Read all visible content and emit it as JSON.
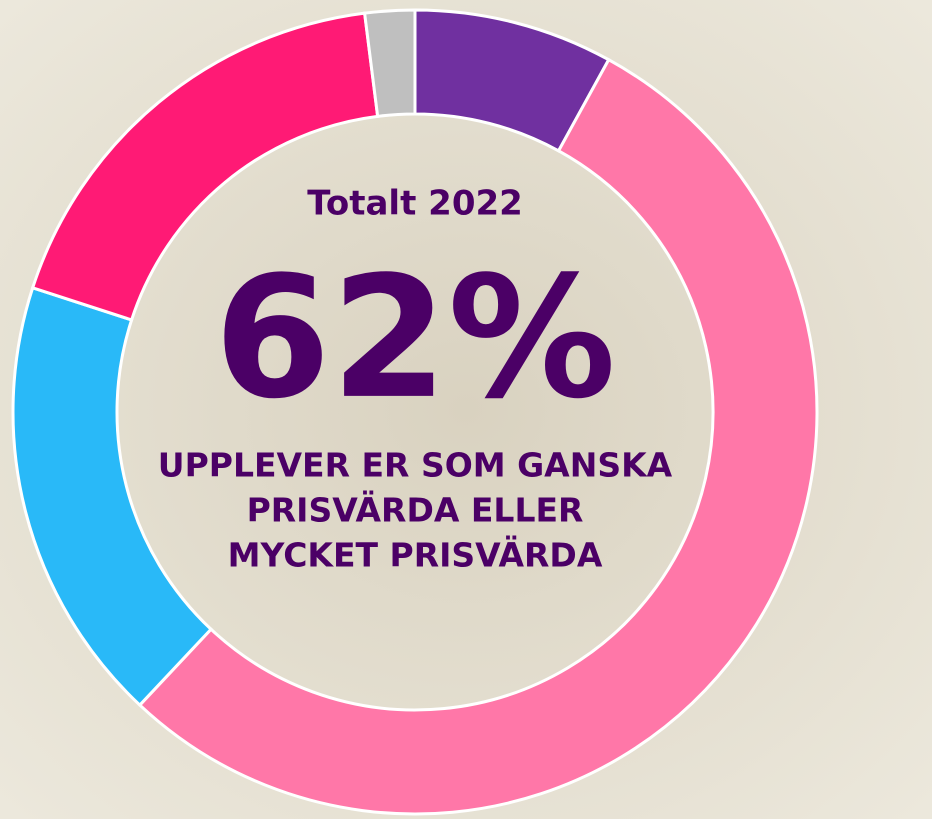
{
  "chart_data": {
    "type": "donut",
    "values": [
      8,
      54,
      18,
      18,
      2
    ],
    "colors": [
      "#7030a0",
      "#ff77a8",
      "#29b9f8",
      "#ff1a75",
      "#bfbfbf"
    ],
    "title": "Totalt 2022",
    "headline": "62%",
    "caption_lines": [
      "UPPLEVER ER SOM GANSKA",
      "PRISVÄRDA ELLER",
      "MYCKET PRISVÄRDA"
    ]
  }
}
